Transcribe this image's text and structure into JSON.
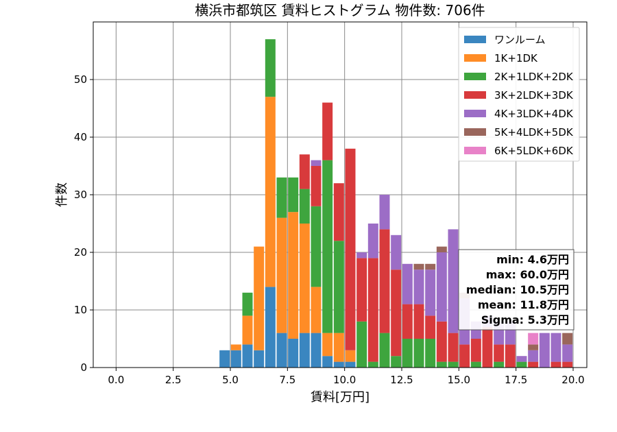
{
  "chart_data": {
    "type": "bar",
    "stacked": true,
    "title": "横浜市都筑区 賃料ヒストグラム 物件数: 706件",
    "xlabel": "賃料[万円]",
    "ylabel": "件数",
    "xlim": [
      -1,
      20.6
    ],
    "ylim": [
      0,
      60
    ],
    "bin_width": 0.5,
    "xticks": [
      0.0,
      2.5,
      5.0,
      7.5,
      10.0,
      12.5,
      15.0,
      17.5,
      20.0
    ],
    "xtick_labels": [
      "0.0",
      "2.5",
      "5.0",
      "7.5",
      "10.0",
      "12.5",
      "15.0",
      "17.5",
      "20.0"
    ],
    "yticks": [
      0,
      10,
      20,
      30,
      40,
      50
    ],
    "ytick_labels": [
      "0",
      "10",
      "20",
      "30",
      "40",
      "50"
    ],
    "grid": true,
    "legend_position": "top-right",
    "series": [
      {
        "name": "ワンルーム",
        "color": "#3a86c0",
        "bins": [
          [
            4.5,
            3
          ],
          [
            5.0,
            3
          ],
          [
            5.5,
            4
          ],
          [
            6.0,
            3
          ],
          [
            6.5,
            14
          ],
          [
            7.0,
            6
          ],
          [
            7.5,
            5
          ],
          [
            8.0,
            6
          ],
          [
            8.5,
            6
          ],
          [
            9.0,
            2
          ],
          [
            9.5,
            1
          ],
          [
            10.0,
            1
          ]
        ]
      },
      {
        "name": "1K+1DK",
        "color": "#ff8c26",
        "bins": [
          [
            5.0,
            1
          ],
          [
            5.5,
            5
          ],
          [
            6.0,
            18
          ],
          [
            6.5,
            33
          ],
          [
            7.0,
            20
          ],
          [
            7.5,
            22
          ],
          [
            8.0,
            19
          ],
          [
            8.5,
            8
          ],
          [
            9.0,
            4
          ],
          [
            9.5,
            5
          ],
          [
            10.0,
            2
          ]
        ]
      },
      {
        "name": "2K+1LDK+2DK",
        "color": "#3ea53e",
        "bins": [
          [
            5.5,
            4
          ],
          [
            6.5,
            10
          ],
          [
            7.0,
            7
          ],
          [
            7.5,
            6
          ],
          [
            8.0,
            6
          ],
          [
            8.5,
            14
          ],
          [
            9.0,
            30
          ],
          [
            9.5,
            16
          ],
          [
            10.0,
            0
          ],
          [
            10.5,
            8
          ],
          [
            11.0,
            1
          ],
          [
            11.5,
            6
          ],
          [
            12.0,
            2
          ],
          [
            12.5,
            5
          ],
          [
            13.0,
            5
          ],
          [
            13.5,
            5
          ],
          [
            14.0,
            1
          ],
          [
            14.5,
            1
          ],
          [
            15.5,
            1
          ],
          [
            16.5,
            1
          ],
          [
            17.5,
            1
          ]
        ]
      },
      {
        "name": "3K+2LDK+3DK",
        "color": "#d83a3c",
        "bins": [
          [
            8.0,
            6
          ],
          [
            8.5,
            7
          ],
          [
            9.0,
            10
          ],
          [
            9.5,
            10
          ],
          [
            10.0,
            35
          ],
          [
            10.5,
            11
          ],
          [
            11.0,
            18
          ],
          [
            11.5,
            18
          ],
          [
            12.0,
            15
          ],
          [
            12.5,
            6
          ],
          [
            13.0,
            6
          ],
          [
            13.5,
            4
          ],
          [
            14.0,
            7
          ],
          [
            14.5,
            5
          ],
          [
            15.0,
            4
          ],
          [
            15.5,
            4
          ],
          [
            16.0,
            7
          ],
          [
            16.5,
            3
          ],
          [
            17.0,
            4
          ],
          [
            18.0,
            1
          ],
          [
            19.0,
            1
          ],
          [
            19.5,
            1
          ]
        ]
      },
      {
        "name": "4K+3LDK+4DK",
        "color": "#9c6dc6",
        "bins": [
          [
            8.5,
            1
          ],
          [
            10.5,
            1
          ],
          [
            11.0,
            6
          ],
          [
            11.5,
            6
          ],
          [
            12.0,
            6
          ],
          [
            12.5,
            7
          ],
          [
            13.0,
            6
          ],
          [
            13.5,
            8
          ],
          [
            14.0,
            12
          ],
          [
            14.5,
            18
          ],
          [
            15.0,
            8
          ],
          [
            15.5,
            3
          ],
          [
            16.0,
            2
          ],
          [
            16.5,
            4
          ],
          [
            17.0,
            4
          ],
          [
            17.5,
            1
          ],
          [
            18.0,
            2
          ],
          [
            18.5,
            6
          ],
          [
            19.0,
            5
          ],
          [
            19.5,
            3
          ]
        ]
      },
      {
        "name": "5K+4LDK+5DK",
        "color": "#9a665c",
        "bins": [
          [
            13.0,
            1
          ],
          [
            13.5,
            1
          ],
          [
            14.0,
            1
          ],
          [
            15.0,
            1
          ],
          [
            18.0,
            1
          ],
          [
            19.5,
            2
          ]
        ]
      },
      {
        "name": "6K+5LDK+6DK",
        "color": "#e882c8",
        "bins": [
          [
            18.0,
            2
          ]
        ]
      }
    ],
    "stats": {
      "min": "min: 4.6万円",
      "max": "max: 60.0万円",
      "median": "median: 10.5万円",
      "mean": "mean: 11.8万円",
      "sigma": "Sigma: 5.3万円"
    }
  }
}
